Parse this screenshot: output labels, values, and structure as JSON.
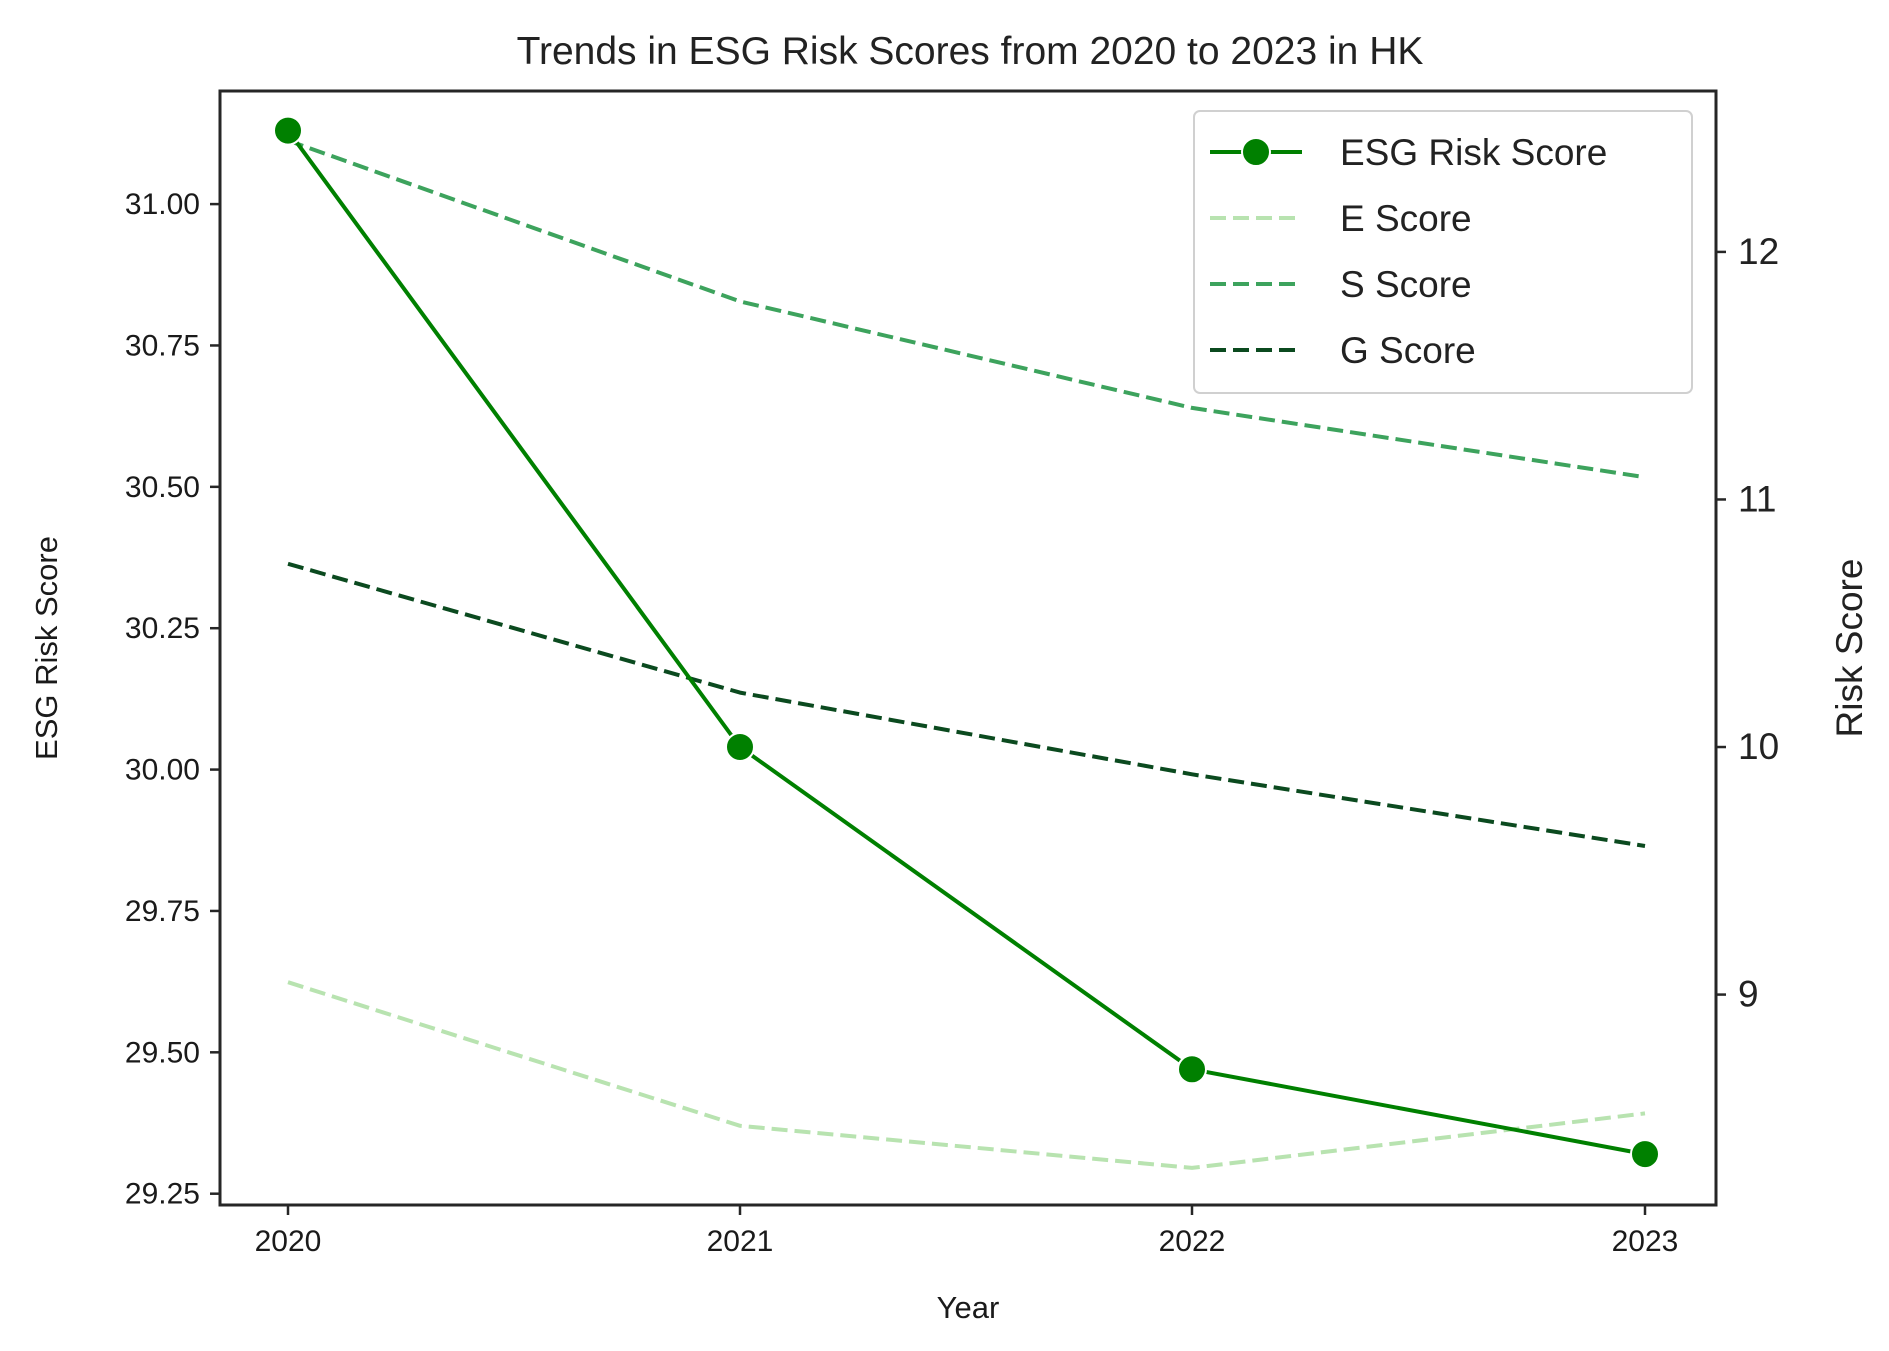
{
  "chart_data": {
    "type": "line",
    "title": "Trends in ESG Risk Scores from 2020 to 2023 in HK",
    "xlabel": "Year",
    "ylabel": "ESG Risk Score",
    "y2label": "Risk Score",
    "categories": [
      "2020",
      "2021",
      "2022",
      "2023"
    ],
    "y_ticks": [
      "29.25",
      "29.50",
      "29.75",
      "30.00",
      "30.25",
      "30.50",
      "30.75",
      "31.00"
    ],
    "y_tick_values": [
      29.25,
      29.5,
      29.75,
      30.0,
      30.25,
      30.5,
      30.75,
      31.0
    ],
    "y2_ticks": [
      "9",
      "10",
      "11",
      "12"
    ],
    "y2_tick_values": [
      9,
      10,
      11,
      12
    ],
    "ylim": [
      29.23,
      31.2
    ],
    "y2lim": [
      8.15,
      12.65
    ],
    "grid": false,
    "legend_position": "top-right",
    "series": [
      {
        "name": "ESG Risk Score",
        "axis": "left",
        "values": [
          31.13,
          30.04,
          29.47,
          29.32
        ],
        "color": "#008000",
        "style": "solid-marker"
      },
      {
        "name": "E Score",
        "axis": "right",
        "values": [
          9.05,
          8.47,
          8.3,
          8.52
        ],
        "color": "#b8e3b0",
        "style": "dashed"
      },
      {
        "name": "S Score",
        "axis": "right",
        "values": [
          12.45,
          11.8,
          11.37,
          11.09
        ],
        "color": "#3da35d",
        "style": "dashed"
      },
      {
        "name": "G Score",
        "axis": "right",
        "values": [
          10.74,
          10.22,
          9.89,
          9.6
        ],
        "color": "#0b4a1f",
        "style": "dashed"
      }
    ]
  }
}
